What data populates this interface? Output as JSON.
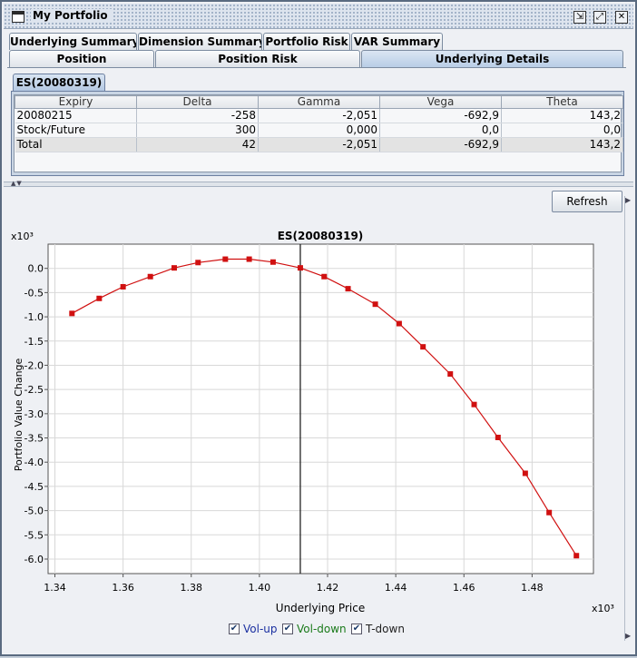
{
  "window": {
    "title": "My Portfolio",
    "buttons": {
      "minimize": "⇲",
      "maximize": "⤢",
      "close": "✕"
    }
  },
  "tabs_row1": [
    "Underlying Summary",
    "Dimension Summary",
    "Portfolio Risk",
    "VAR Summary"
  ],
  "tabs_row2": [
    "Position",
    "Position Risk",
    "Underlying Details"
  ],
  "active_tab": "Underlying Details",
  "subtab": "ES(20080319)",
  "table": {
    "columns": [
      "Expiry",
      "Delta",
      "Gamma",
      "Vega",
      "Theta"
    ],
    "rows": [
      [
        "20080215",
        "-258",
        "-2,051",
        "-692,9",
        "143,2"
      ],
      [
        "Stock/Future",
        "300",
        "0,000",
        "0,0",
        "0,0"
      ],
      [
        "Total",
        "42",
        "-2,051",
        "-692,9",
        "143,2"
      ]
    ]
  },
  "refresh_label": "Refresh",
  "chart_data": {
    "type": "line",
    "title": "ES(20080319)",
    "xlabel": "Underlying Price",
    "ylabel": "Portfolio Value Change",
    "x_multiplier_label": "x10³",
    "y_multiplier_label": "x10³",
    "xlim": [
      1.338,
      1.498
    ],
    "ylim": [
      -6.3,
      0.5
    ],
    "xticks": [
      "1.34",
      "1.36",
      "1.38",
      "1.40",
      "1.42",
      "1.44",
      "1.46",
      "1.48"
    ],
    "yticks": [
      "0.0",
      "-0.5",
      "-1.0",
      "-1.5",
      "-2.0",
      "-2.5",
      "-3.0",
      "-3.5",
      "-4.0",
      "-4.5",
      "-5.0",
      "-5.5",
      "-6.0"
    ],
    "grid": true,
    "current_price_line": 1.412,
    "series": [
      {
        "color": "#d01010",
        "x": [
          1.345,
          1.353,
          1.36,
          1.368,
          1.375,
          1.382,
          1.39,
          1.397,
          1.404,
          1.412,
          1.419,
          1.426,
          1.434,
          1.441,
          1.448,
          1.456,
          1.463,
          1.47,
          1.478,
          1.485,
          1.493
        ],
        "y": [
          -0.93,
          -0.62,
          -0.38,
          -0.17,
          0.01,
          0.12,
          0.19,
          0.19,
          0.13,
          0.01,
          -0.17,
          -0.42,
          -0.74,
          -1.14,
          -1.62,
          -2.18,
          -2.81,
          -3.49,
          -4.23,
          -5.04,
          -5.93
        ]
      }
    ],
    "legend": [
      {
        "label": "Vol-up",
        "color": "#1a2fa0",
        "checked": true
      },
      {
        "label": "Vol-down",
        "color": "#1a7a1a",
        "checked": true
      },
      {
        "label": "T-down",
        "color": "#222222",
        "checked": true
      }
    ]
  }
}
